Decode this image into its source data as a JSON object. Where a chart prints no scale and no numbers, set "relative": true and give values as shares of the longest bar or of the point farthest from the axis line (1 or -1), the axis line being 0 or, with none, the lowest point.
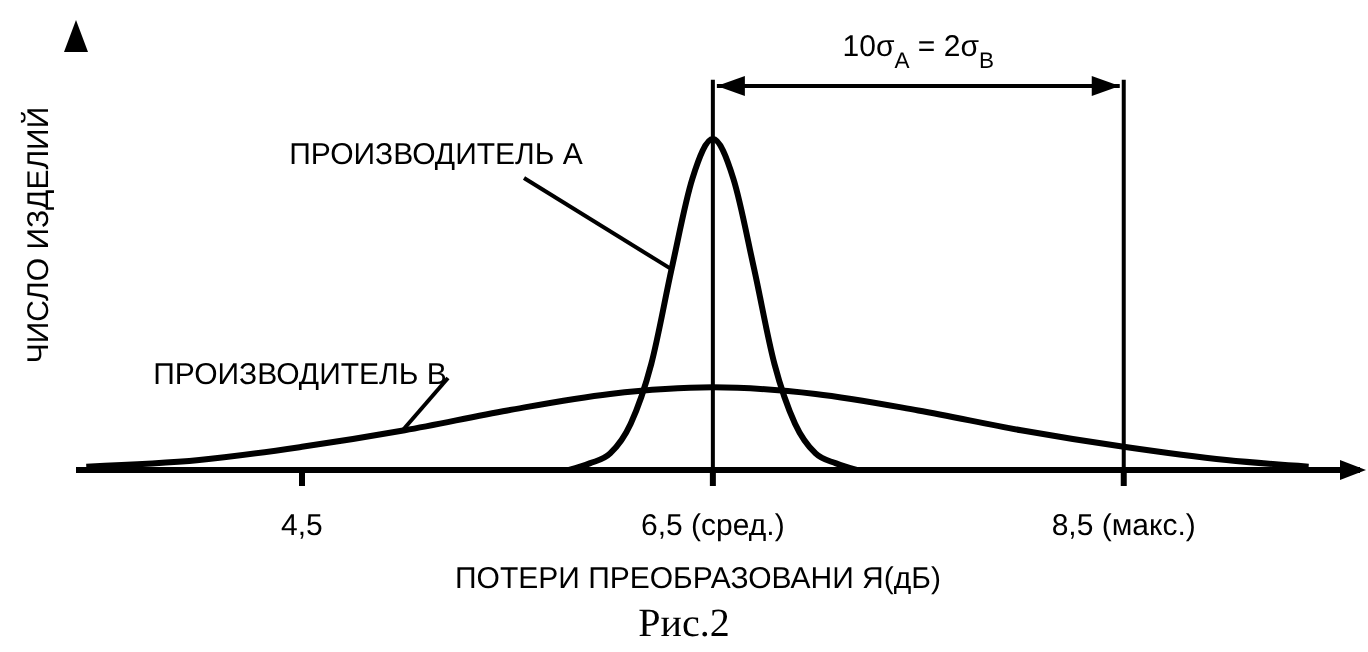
{
  "chart_data": {
    "type": "line",
    "relative": true,
    "xlabel": "ПОТЕРИ ПРЕОБРАЗОВАНИ Я(дБ)",
    "ylabel": "ЧИСЛО ИЗДЕЛИЙ",
    "xlim": [
      3.4,
      9.65
    ],
    "xticks": [
      {
        "value": 4.5,
        "label": "4,5"
      },
      {
        "value": 6.5,
        "label": "6,5 (сред.)"
      },
      {
        "value": 8.5,
        "label": "8,5 (макс.)"
      }
    ],
    "series": [
      {
        "name": "ПРОИЗВОДИТЕЛЬ А",
        "color": "#000000",
        "x": [
          5.8,
          5.9,
          6.0,
          6.1,
          6.2,
          6.3,
          6.4,
          6.5,
          6.6,
          6.7,
          6.8,
          6.9,
          7.0,
          7.1,
          7.2
        ],
        "values": [
          0,
          0.02,
          0.05,
          0.14,
          0.32,
          0.61,
          0.88,
          1,
          0.88,
          0.61,
          0.32,
          0.14,
          0.05,
          0.02,
          0
        ]
      },
      {
        "name": "ПРОИЗВОДИТЕЛЬ В",
        "color": "#000000",
        "x": [
          3.45,
          4.0,
          4.5,
          5.0,
          5.5,
          6.0,
          6.5,
          7.0,
          7.5,
          8.0,
          8.5,
          9.0,
          9.4
        ],
        "values": [
          0.01,
          0.03,
          0.07,
          0.12,
          0.18,
          0.23,
          0.25,
          0.23,
          0.18,
          0.12,
          0.07,
          0.03,
          0.01
        ]
      }
    ],
    "ref_lines": [
      {
        "axis": "x",
        "value": 6.5,
        "color": "#000000"
      },
      {
        "axis": "x",
        "value": 8.5,
        "color": "#000000"
      }
    ],
    "annotations": [
      "10σ$_{A}$ = 2σ$_{B}$",
      "Рис.2"
    ],
    "marker": "none",
    "line_style": "solid"
  }
}
